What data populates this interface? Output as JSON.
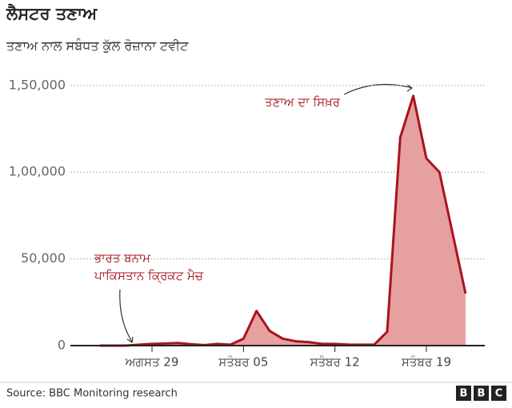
{
  "chart_data": {
    "type": "area",
    "title": "ਲੈਸਟਰ ਤਣਾਅ",
    "subtitle": "ਤਣਾਅ ਨਾਲ ਸਬੰਧਤ ਕੁੱਲ ਰੋਜ਼ਾਨਾ ਟਵੀਟ",
    "categories": [
      null,
      null,
      null,
      null,
      "ਅਗਸਤ 29",
      null,
      null,
      null,
      null,
      null,
      null,
      "ਸਤੰਬਰ 05",
      null,
      null,
      null,
      null,
      null,
      null,
      "ਸਤੰਬਰ 12",
      null,
      null,
      null,
      null,
      null,
      null,
      "ਸਤੰਬਰ 19",
      null,
      null,
      null
    ],
    "values": [
      0,
      0,
      0,
      500,
      1000,
      1200,
      1500,
      800,
      300,
      1000,
      500,
      4000,
      20000,
      8500,
      4000,
      2500,
      2000,
      1000,
      1000,
      600,
      500,
      500,
      8000,
      120000,
      144000,
      108000,
      100000,
      65000,
      30000
    ],
    "color": "#a8141c",
    "fill": "#e5a09f",
    "ylim": [
      0,
      155000
    ],
    "yticks": [
      0,
      {
        "value": 50000,
        "label": "50,000"
      },
      {
        "value": 100000,
        "label": "1,00,000"
      },
      {
        "value": 150000,
        "label": "1,50,000"
      }
    ],
    "grid": true,
    "annotations": [
      {
        "lines": [
          "ਤਣਾਅ ਦਾ ਸਿਖ਼ਰ"
        ]
      },
      {
        "lines": [
          "ਭਾਰਤ ਬਨਾਮ",
          "ਪਾਕਿਸਤਾਨ ਕ੍ਰਿਕਟ ਮੈਚ"
        ]
      }
    ],
    "source": "Source: BBC Monitoring research",
    "logo": [
      "B",
      "B",
      "C"
    ]
  }
}
